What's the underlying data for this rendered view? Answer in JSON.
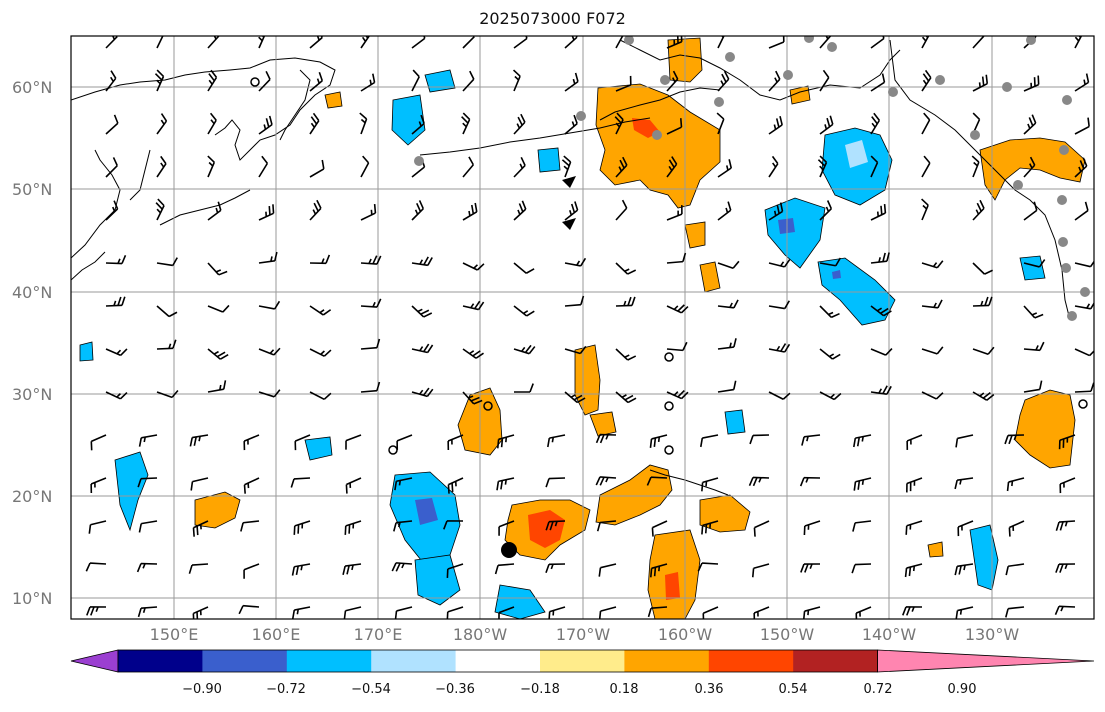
{
  "title": "2025073000 F072",
  "lat_ticks": [
    "60°N",
    "50°N",
    "40°N",
    "30°N",
    "20°N",
    "10°N"
  ],
  "lon_ticks": [
    "150°E",
    "160°E",
    "170°E",
    "180°W",
    "170°W",
    "160°W",
    "150°W",
    "140°W",
    "130°W"
  ],
  "colorbar": {
    "tick_labels": [
      "−0.90",
      "−0.72",
      "−0.54",
      "−0.36",
      "−0.18",
      "0.18",
      "0.36",
      "0.54",
      "0.72",
      "0.90"
    ],
    "colors": [
      "#9b3fd1",
      "#00008b",
      "#3a5fcd",
      "#00bfff",
      "#b0e2ff",
      "#ffffff",
      "#ffec8b",
      "#ffa500",
      "#ff4500",
      "#b22222",
      "#ff85b0"
    ]
  },
  "colors": {
    "coast": "#000000",
    "grid": "#9a9a9a",
    "barb": "#000000",
    "station": "#888888"
  },
  "map_extent": {
    "lon_west": 140,
    "lon_east": 240,
    "lat_south": 8,
    "lat_north": 65
  }
}
